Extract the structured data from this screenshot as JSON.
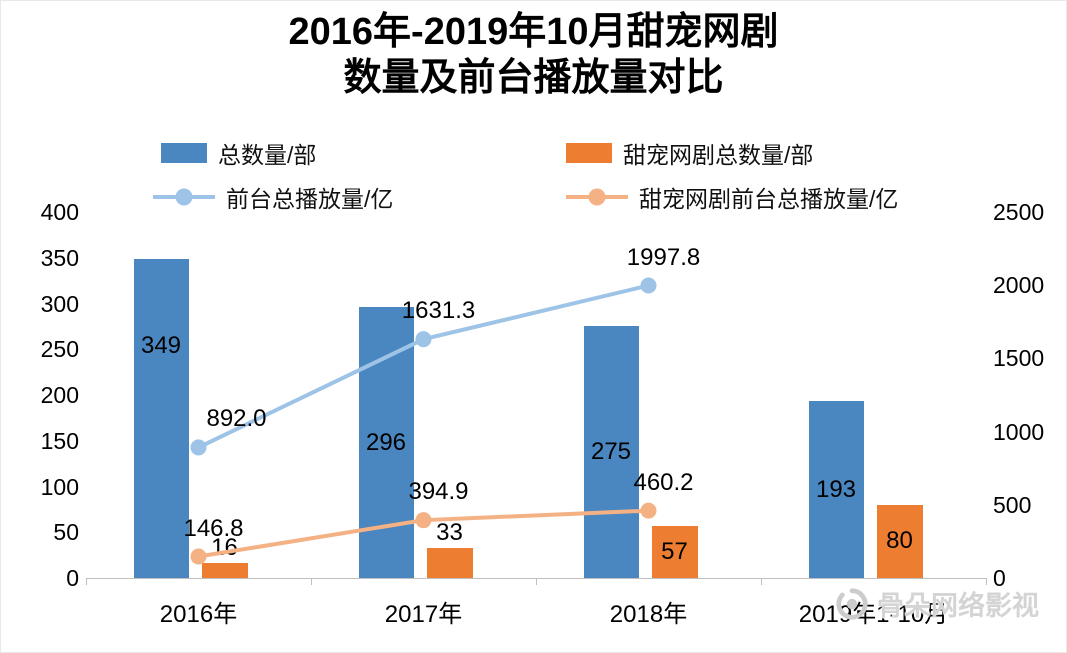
{
  "title": {
    "line1": "2016年-2019年10月甜宠网剧",
    "line2": "数量及前台播放量对比"
  },
  "legend": [
    {
      "label": "总数量/部",
      "type": "bar",
      "color": "#4a86c0"
    },
    {
      "label": "甜宠网剧总数量/部",
      "type": "bar",
      "color": "#ed7d31"
    },
    {
      "label": "前台总播放量/亿",
      "type": "line",
      "color": "#9dc3e6"
    },
    {
      "label": "甜宠网剧前台总播放量/亿",
      "type": "line",
      "color": "#f4b183"
    }
  ],
  "watermark": {
    "text": "骨朵网络影视"
  },
  "chart_data": {
    "type": "bar+line combo",
    "title": "2016年-2019年10月甜宠网剧 数量及前台播放量对比",
    "categories": [
      "2016年",
      "2017年",
      "2018年",
      "2019年1-10月"
    ],
    "bar_series": [
      {
        "name": "总数量/部",
        "axis": "left",
        "color": "#4a86c0",
        "values": [
          349,
          296,
          275,
          193
        ],
        "value_labels": [
          "349",
          "296",
          "275",
          "193"
        ]
      },
      {
        "name": "甜宠网剧总数量/部",
        "axis": "left",
        "color": "#ed7d31",
        "values": [
          16,
          33,
          57,
          80
        ],
        "value_labels": [
          "16",
          "33",
          "57",
          "80"
        ]
      }
    ],
    "line_series": [
      {
        "name": "前台总播放量/亿",
        "axis": "right",
        "color": "#9dc3e6",
        "values": [
          892.0,
          1631.3,
          1997.8
        ],
        "value_labels": [
          "892.0",
          "1631.3",
          "1997.8"
        ]
      },
      {
        "name": "甜宠网剧前台总播放量/亿",
        "axis": "right",
        "color": "#f4b183",
        "values": [
          146.8,
          394.9,
          460.2
        ],
        "value_labels": [
          "146.8",
          "394.9",
          "460.2"
        ]
      }
    ],
    "left_axis": {
      "min": 0,
      "max": 400,
      "step": 50,
      "ticks": [
        "0",
        "50",
        "100",
        "150",
        "200",
        "250",
        "300",
        "350",
        "400"
      ]
    },
    "right_axis": {
      "min": 0,
      "max": 2500,
      "step": 500,
      "ticks": [
        "0",
        "500",
        "1000",
        "1500",
        "2000",
        "2500"
      ]
    },
    "grid": false,
    "legend_position": "top"
  }
}
